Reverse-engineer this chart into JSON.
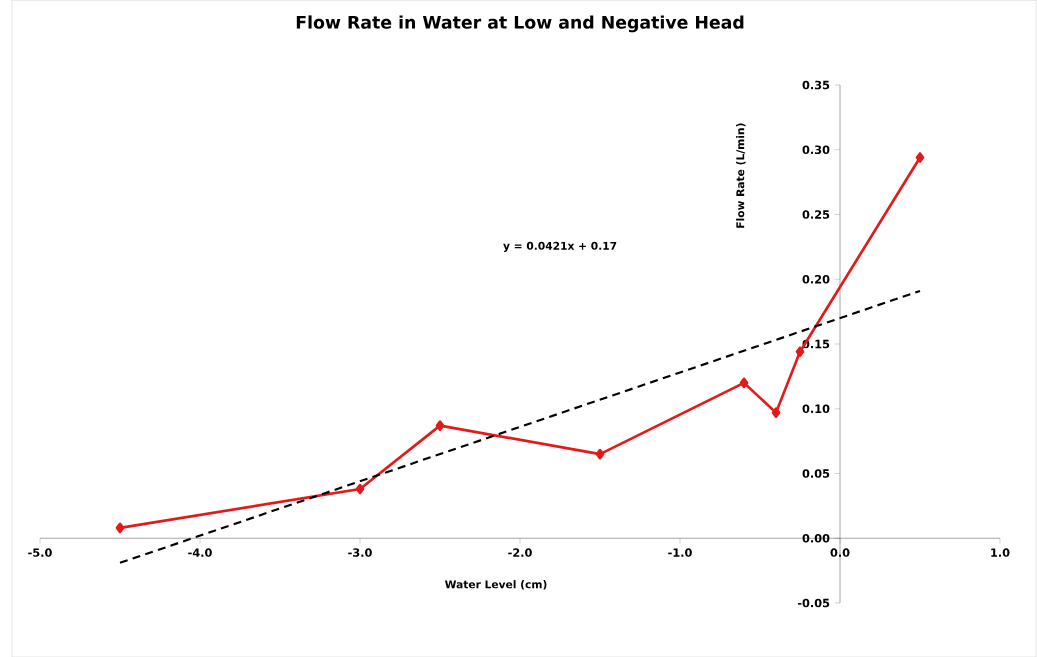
{
  "chart_data": {
    "type": "line",
    "title": "Flow Rate in Water at Low and Negative Head",
    "xlabel": "Water Level (cm)",
    "ylabel": "Flow Rate (L/min)",
    "annotations": [
      "y = 0.0421x + 0.17"
    ],
    "series": [
      {
        "color": "#e31a1a",
        "marker": "diamond",
        "line_style": "solid",
        "x": [
          -4.5,
          -3.0,
          -2.5,
          -1.5,
          -0.6,
          -0.4,
          -0.25,
          0.5
        ],
        "values": [
          0.008,
          0.038,
          0.087,
          0.065,
          0.12,
          0.097,
          0.144,
          0.294
        ]
      },
      {
        "color": "#000000",
        "marker": "none",
        "line_style": "dashed",
        "x": [
          -4.5,
          0.5
        ],
        "values": [
          -0.019,
          0.191
        ]
      }
    ],
    "xlim": [
      -5,
      1
    ],
    "ylim": [
      -0.05,
      0.35
    ],
    "xticks": [
      {
        "value": -5,
        "label": "-5.0"
      },
      {
        "value": -4,
        "label": "-4.0"
      },
      {
        "value": -3,
        "label": "-3.0"
      },
      {
        "value": -2,
        "label": "-2.0"
      },
      {
        "value": -1,
        "label": "-1.0"
      },
      {
        "value": 0,
        "label": "0.0"
      },
      {
        "value": 1,
        "label": "1.0"
      }
    ],
    "yticks": [
      {
        "value": -0.05,
        "label": "-0.05"
      },
      {
        "value": 0,
        "label": "0.00"
      },
      {
        "value": 0.05,
        "label": "0.05"
      },
      {
        "value": 0.1,
        "label": "0.10"
      },
      {
        "value": 0.15,
        "label": "0.15"
      },
      {
        "value": 0.2,
        "label": "0.20"
      },
      {
        "value": 0.25,
        "label": "0.25"
      },
      {
        "value": 0.3,
        "label": "0.30"
      },
      {
        "value": 0.35,
        "label": "0.35"
      }
    ]
  }
}
